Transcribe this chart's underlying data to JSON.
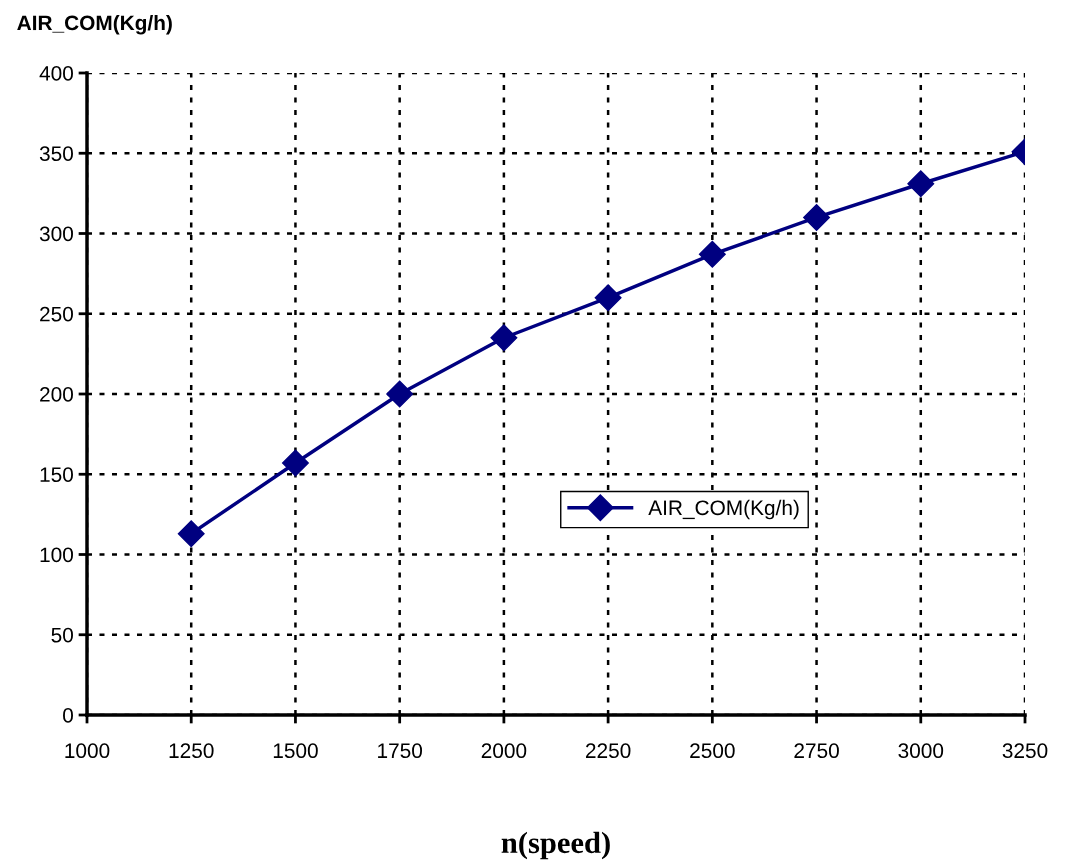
{
  "chart_data": {
    "type": "line",
    "ylabel": "AIR_COM(Kg/h)",
    "xlabel": "n(speed)",
    "x": [
      1250,
      1500,
      1750,
      2000,
      2250,
      2500,
      2750,
      3000,
      3250
    ],
    "series": [
      {
        "name": "AIR_COM(Kg/h)",
        "color": "#000080",
        "values": [
          113,
          157,
          200,
          235,
          260,
          287,
          310,
          331,
          351
        ]
      }
    ],
    "xlim": [
      1000,
      3250
    ],
    "xticks": [
      1000,
      1250,
      1500,
      1750,
      2000,
      2250,
      2500,
      2750,
      3000,
      3250
    ],
    "ylim": [
      0,
      400
    ],
    "yticks": [
      0,
      50,
      100,
      150,
      200,
      250,
      300,
      350,
      400
    ],
    "grid": true,
    "legend": "right",
    "marker": "diamond",
    "line_style": "solid"
  }
}
